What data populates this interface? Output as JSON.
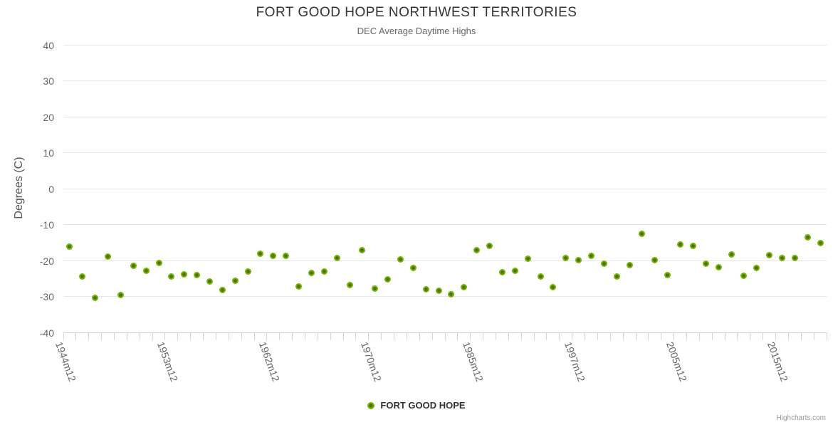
{
  "title": "FORT GOOD HOPE NORTHWEST TERRITORIES",
  "subtitle": "DEC Average Daytime Highs",
  "credits": "Highcharts.com",
  "legend": {
    "label": "FORT GOOD HOPE"
  },
  "colors": {
    "marker": "#77b300",
    "marker_center": "#48700a",
    "grid": "#e6e6e6",
    "axis_line": "#ccd6eb",
    "title_text": "#333333",
    "muted_text": "#666666",
    "credits_text": "#999999"
  },
  "chart_data": {
    "type": "scatter",
    "title": "FORT GOOD HOPE NORTHWEST TERRITORIES",
    "subtitle": "DEC Average Daytime Highs",
    "xlabel": "",
    "ylabel": "Degrees (C)",
    "ylim": [
      -40,
      40
    ],
    "y_ticks": [
      40,
      30,
      20,
      10,
      0,
      -10,
      -20,
      -30,
      -40
    ],
    "grid": true,
    "legend_position": "bottom",
    "x_type": "category",
    "x_tick_labels": [
      {
        "index": 0,
        "label": "1944m12"
      },
      {
        "index": 8,
        "label": "1953m12"
      },
      {
        "index": 16,
        "label": "1962m12"
      },
      {
        "index": 24,
        "label": "1970m12"
      },
      {
        "index": 32,
        "label": "1985m12"
      },
      {
        "index": 40,
        "label": "1997m12"
      },
      {
        "index": 48,
        "label": "2005m12"
      },
      {
        "index": 56,
        "label": "2015m12"
      }
    ],
    "series": [
      {
        "name": "FORT GOOD HOPE",
        "color": "#77b300",
        "values": [
          -16.3,
          -24.6,
          -30.5,
          -19.1,
          -29.8,
          -21.6,
          -23.0,
          -20.8,
          -24.6,
          -24.0,
          -24.2,
          -25.9,
          -28.4,
          -25.7,
          -23.2,
          -18.3,
          -18.9,
          -18.8,
          -27.4,
          -23.6,
          -23.2,
          -19.5,
          -26.9,
          -17.3,
          -28.0,
          -25.4,
          -19.8,
          -22.2,
          -28.2,
          -28.5,
          -29.5,
          -27.6,
          -17.2,
          -16.1,
          -23.4,
          -23.0,
          -19.7,
          -24.6,
          -27.5,
          -19.4,
          -20.0,
          -18.8,
          -20.9,
          -24.5,
          -21.4,
          -12.6,
          -20.0,
          -24.2,
          -15.7,
          -16.0,
          -20.9,
          -22.0,
          -18.4,
          -24.4,
          -22.1,
          -18.7,
          -19.4,
          -19.4,
          -13.7,
          -15.2
        ]
      }
    ]
  }
}
